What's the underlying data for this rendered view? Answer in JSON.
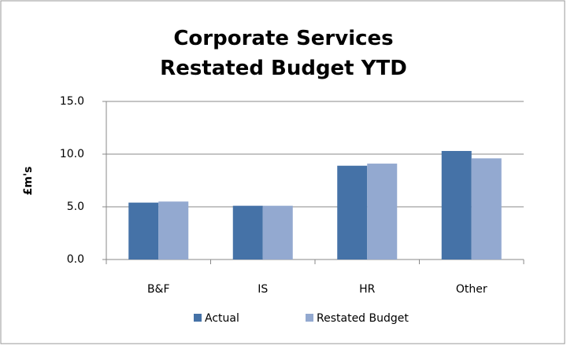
{
  "chart_data": {
    "type": "bar",
    "title": "Corporate Services Restated Budget YTD",
    "y_label": "£m's",
    "categories": [
      "B&F",
      "IS",
      "HR",
      "Other"
    ],
    "series": [
      {
        "name": "Actual",
        "color": "#4572a7",
        "values": [
          5.4,
          5.1,
          8.9,
          10.3
        ]
      },
      {
        "name": "Restated Budget",
        "color": "#93a9d0",
        "values": [
          5.5,
          5.1,
          9.1,
          9.6
        ]
      }
    ],
    "ylim": [
      0,
      15
    ],
    "yticks": [
      {
        "value": 0,
        "label": "0.0"
      },
      {
        "value": 5,
        "label": "5.0"
      },
      {
        "value": 10,
        "label": "10.0"
      },
      {
        "value": 15,
        "label": "15.0"
      }
    ],
    "grid": true,
    "legend": "bottom"
  }
}
